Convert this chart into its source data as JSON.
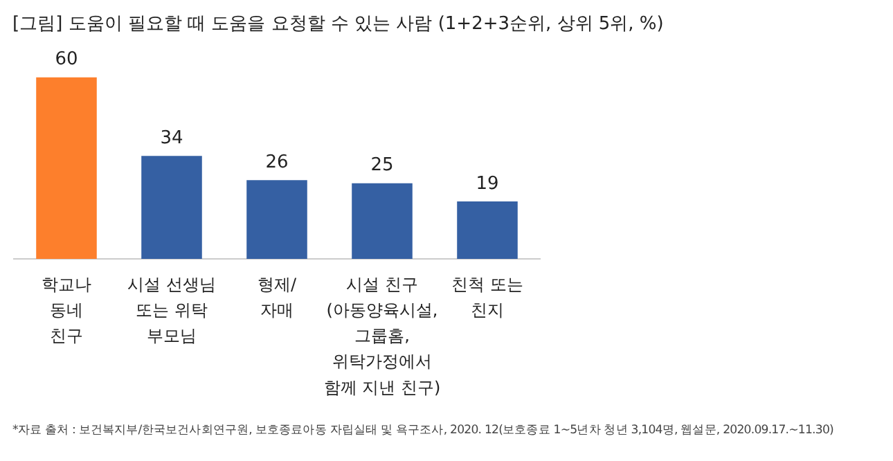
{
  "chart_data": {
    "type": "bar",
    "title": "[그림] 도움이 필요할 때 도움을 요청할 수 있는 사람 (1+2+3순위, 상위 5위, %)",
    "categories": [
      "학교나\n동네\n친구",
      "시설 선생님\n또는 위탁\n부모님",
      "형제/\n자매",
      "시설 친구\n(아동양육시설,\n그룹홈,\n위탁가정에서\n함께 지낸 친구)",
      "친척 또는\n친지"
    ],
    "values": [
      60,
      34,
      26,
      25,
      19
    ],
    "colors": [
      "#fd7f2c",
      "#3560a3",
      "#3560a3",
      "#3560a3",
      "#3560a3"
    ],
    "data_labels": true,
    "grid": false,
    "legend": false,
    "annotations": [
      "*자료 출처 : 보건복지부/한국보건사회연구원, 보호종료아동 자립실태 및 욕구조사, 2020. 12(보호종료 1~5년차 청년 3,104명, 웹설문, 2020.09.17.~11.30)"
    ]
  }
}
